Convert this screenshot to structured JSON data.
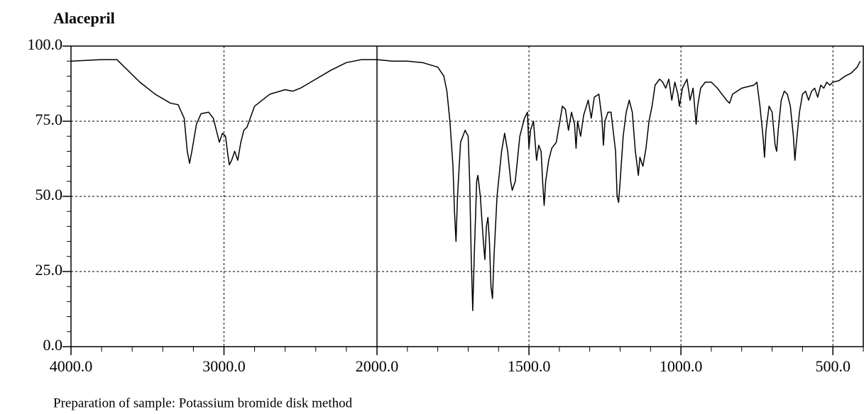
{
  "chart_data": {
    "type": "line",
    "title": "Alacepril",
    "caption": "Preparation of sample: Potassium bromide disk method",
    "color": "#000000",
    "grid": true,
    "x_scale_break": 2000,
    "xlim": [
      4000,
      400
    ],
    "ylim": [
      0,
      100
    ],
    "xticks": [
      {
        "value": 4000,
        "label": "4000.0"
      },
      {
        "value": 3000,
        "label": "3000.0"
      },
      {
        "value": 2000,
        "label": "2000.0"
      },
      {
        "value": 1500,
        "label": "1500.0"
      },
      {
        "value": 1000,
        "label": "1000.0"
      },
      {
        "value": 500,
        "label": "500.0"
      }
    ],
    "xticks_minor": [
      3800,
      3600,
      3400,
      3200,
      2800,
      2600,
      2400,
      2200,
      1900,
      1800,
      1700,
      1600,
      1400,
      1300,
      1200,
      1100,
      900,
      800,
      700,
      600,
      400
    ],
    "yticks": [
      {
        "value": 0,
        "label": "0.0"
      },
      {
        "value": 25,
        "label": "25.0"
      },
      {
        "value": 50,
        "label": "50.0"
      },
      {
        "value": 75,
        "label": "75.0"
      },
      {
        "value": 100,
        "label": "100.0"
      }
    ],
    "yticks_minor": [
      5,
      10,
      15,
      20,
      30,
      35,
      40,
      45,
      55,
      60,
      65,
      70,
      80,
      85,
      90,
      95
    ],
    "x": [
      4000,
      3800,
      3700,
      3650,
      3550,
      3450,
      3350,
      3300,
      3260,
      3240,
      3225,
      3210,
      3180,
      3150,
      3100,
      3070,
      3040,
      3030,
      3010,
      2990,
      2975,
      2965,
      2950,
      2930,
      2910,
      2890,
      2870,
      2850,
      2800,
      2700,
      2600,
      2550,
      2500,
      2400,
      2300,
      2200,
      2100,
      2000,
      1950,
      1900,
      1850,
      1800,
      1780,
      1770,
      1760,
      1750,
      1745,
      1740,
      1735,
      1725,
      1710,
      1700,
      1695,
      1690,
      1685,
      1680,
      1672,
      1668,
      1660,
      1650,
      1645,
      1640,
      1635,
      1630,
      1625,
      1620,
      1615,
      1605,
      1590,
      1580,
      1570,
      1560,
      1555,
      1545,
      1530,
      1515,
      1505,
      1500,
      1495,
      1485,
      1475,
      1468,
      1460,
      1455,
      1450,
      1445,
      1435,
      1425,
      1410,
      1400,
      1390,
      1380,
      1370,
      1360,
      1350,
      1345,
      1340,
      1330,
      1320,
      1305,
      1295,
      1285,
      1270,
      1260,
      1255,
      1250,
      1240,
      1230,
      1215,
      1210,
      1205,
      1200,
      1190,
      1180,
      1170,
      1160,
      1150,
      1140,
      1135,
      1125,
      1115,
      1105,
      1095,
      1085,
      1070,
      1060,
      1050,
      1040,
      1030,
      1020,
      1010,
      1005,
      995,
      980,
      970,
      960,
      950,
      945,
      935,
      920,
      900,
      880,
      850,
      840,
      830,
      800,
      760,
      750,
      740,
      730,
      725,
      720,
      710,
      700,
      690,
      685,
      680,
      670,
      660,
      650,
      640,
      630,
      625,
      620,
      610,
      600,
      590,
      580,
      570,
      560,
      550,
      540,
      530,
      520,
      510,
      500,
      480,
      460,
      440,
      420,
      410
    ],
    "values": [
      95,
      95.5,
      95.5,
      93,
      88,
      84,
      81,
      80.5,
      76,
      65,
      61,
      65,
      74,
      77.5,
      78,
      76,
      70,
      68,
      71,
      70,
      64,
      60.5,
      62,
      65,
      62,
      68,
      72,
      73,
      80,
      84,
      85.5,
      85,
      86,
      89,
      92,
      94.5,
      95.5,
      95.5,
      95,
      95,
      94.5,
      93,
      90,
      85,
      75,
      60,
      45,
      35,
      50,
      68,
      72,
      70,
      55,
      30,
      12,
      30,
      55,
      57,
      50,
      35,
      29,
      40,
      43,
      35,
      20,
      16,
      30,
      50,
      65,
      71,
      65,
      55,
      52,
      55,
      70,
      76,
      78,
      66,
      72,
      75,
      62,
      67,
      65,
      55,
      47,
      55,
      62,
      66,
      68,
      74,
      80,
      79,
      72,
      78,
      74,
      66,
      75,
      70,
      77,
      82,
      76,
      83,
      84,
      76,
      67,
      75,
      78,
      78,
      65,
      50,
      48,
      55,
      70,
      78,
      82,
      78,
      65,
      57,
      63,
      60,
      66,
      75,
      80,
      87,
      89,
      88,
      86,
      89,
      82,
      88,
      84,
      80,
      86,
      89,
      82,
      86,
      74,
      80,
      86,
      88,
      88,
      86,
      82,
      81,
      84,
      86,
      87,
      88,
      80,
      70,
      63,
      72,
      80,
      78,
      67,
      65,
      72,
      82,
      85,
      84,
      80,
      70,
      62,
      68,
      78,
      84,
      85,
      82,
      85,
      86,
      83,
      87,
      86,
      88,
      87,
      88,
      88.5,
      90,
      91,
      93,
      95
    ]
  }
}
